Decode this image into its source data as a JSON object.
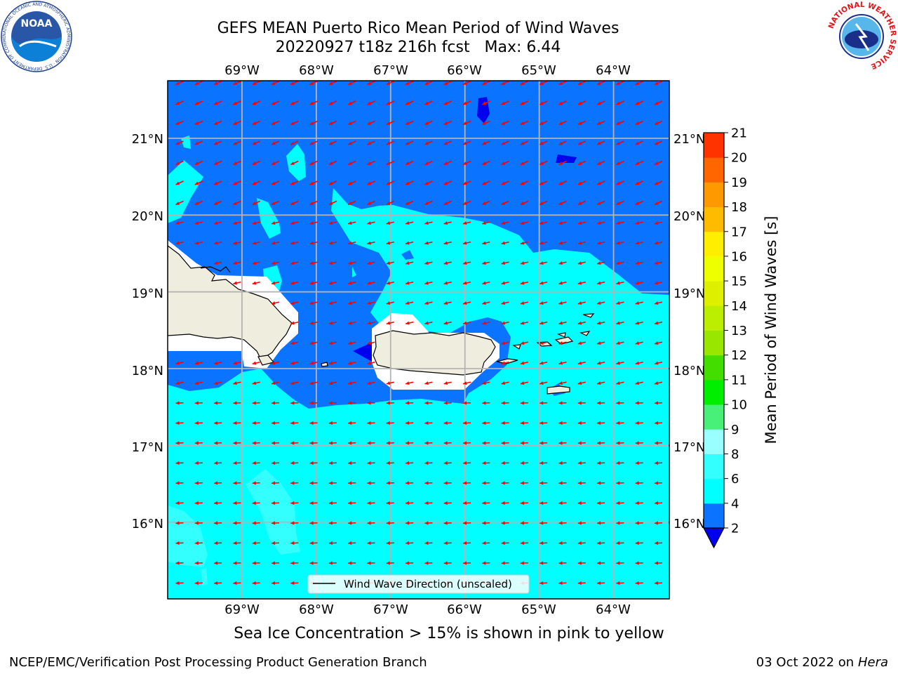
{
  "title": {
    "line1": "GEFS MEAN Puerto Rico Mean Period of Wind Waves",
    "line2": "20220927 t18z 216h fcst   Max: 6.44"
  },
  "map": {
    "lon_ticks": [
      "69°W",
      "68°W",
      "67°W",
      "66°W",
      "65°W",
      "64°W"
    ],
    "lat_ticks": [
      "21°N",
      "20°N",
      "19°N",
      "18°N",
      "17°N",
      "16°N"
    ],
    "lon_range": [
      -70.0,
      -63.25
    ],
    "lat_range": [
      15.0,
      21.75
    ],
    "legend_label": "Wind Wave Direction (unscaled)",
    "arrow_color": "#ff0000",
    "land_color": "#efedde"
  },
  "colorbar": {
    "label": "Mean Period of Wind Waves [s]",
    "ticks": [
      "2",
      "4",
      "6",
      "8",
      "9",
      "10",
      "11",
      "12",
      "13",
      "14",
      "15",
      "16",
      "17",
      "18",
      "19",
      "20",
      "21"
    ],
    "colors": [
      "#0a73ff",
      "#00ffff",
      "#33ffff",
      "#99ffff",
      "#48f07a",
      "#00ee00",
      "#44dd00",
      "#99e600",
      "#bbee00",
      "#ddf000",
      "#eeff00",
      "#ffee00",
      "#ffbb00",
      "#ff9900",
      "#ff6600",
      "#ff3300",
      "#ff0000"
    ],
    "under_color": "#0000ee"
  },
  "caption": "Sea Ice Concentration > 15% is shown in pink to yellow",
  "footer": {
    "left": "NCEP/EMC/Verification Post Processing Product Generation Branch",
    "date": "03 Oct 2022 on ",
    "host": "Hera"
  },
  "logos": {
    "noaa": "NOAA",
    "noaa_ring": "NATIONAL OCEANIC AND ATMOSPHERIC ADMINISTRATION · U.S. DEPARTMENT OF COMMERCE ·",
    "nws_ring": "NATIONAL WEATHER SERVICE"
  }
}
